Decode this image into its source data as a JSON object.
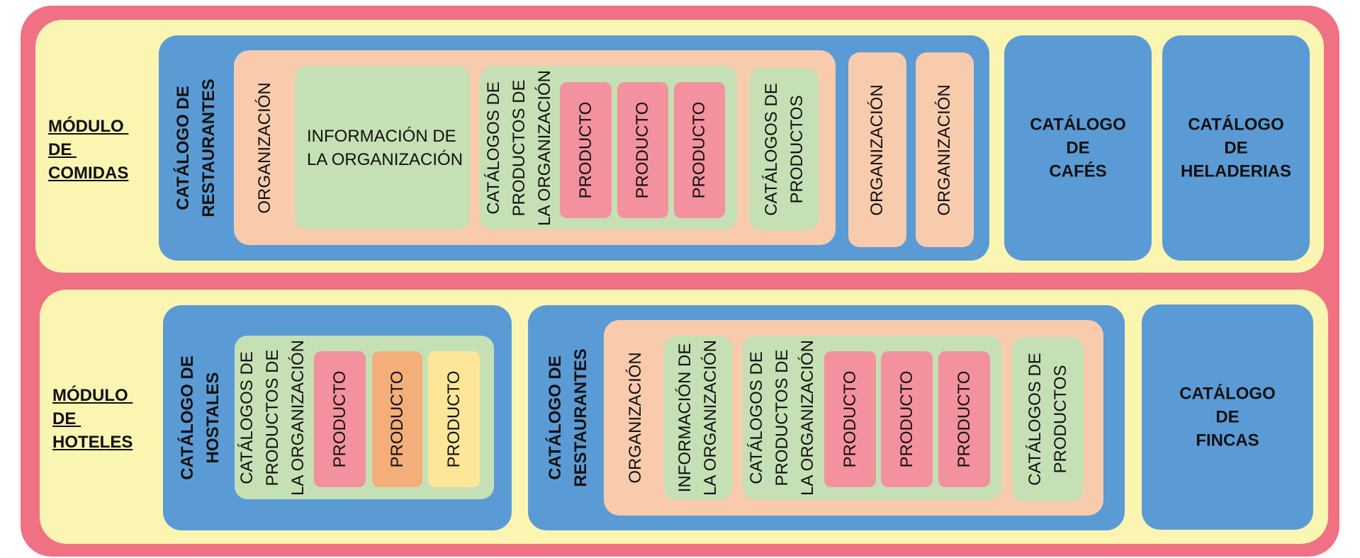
{
  "modules": {
    "comidas": {
      "label": "MÓDULO \nDE \nCOMIDAS",
      "restaurantes": {
        "label": "CATÁLOGO DE\nRESTAURANTES",
        "org_main": {
          "label": "ORGANIZACIÓN",
          "info": "INFORMACIÓN DE\nLA ORGANIZACIÓN",
          "catalogos_org": {
            "label": "CATÁLOGOS DE\nPRODUCTOS DE\nLA ORGANIZACIÓN",
            "productos": [
              "PRODUCTO",
              "PRODUCTO",
              "PRODUCTO"
            ]
          },
          "catalogos_productos": "CATÁLOGOS DE\nPRODUCTOS"
        },
        "org_extra": [
          "ORGANIZACIÓN",
          "ORGANIZACIÓN"
        ]
      },
      "cafes": "CATÁLOGO\nDE\nCAFÉS",
      "heladerias": "CATÁLOGO\nDE\nHELADERIAS"
    },
    "hoteles": {
      "label": "MÓDULO \nDE \nHOTELES",
      "hostales": {
        "label": "CATÁLOGO DE\nHOSTALES",
        "catalogos_org": {
          "label": "CATÁLOGOS DE\nPRODUCTOS DE\nLA ORGANIZACIÓN",
          "productos": [
            "PRODUCTO",
            "PRODUCTO",
            "PRODUCTO"
          ]
        }
      },
      "restaurantes": {
        "label": "CATÁLOGO DE\nRESTAURANTES",
        "org_main": {
          "label": "ORGANIZACIÓN",
          "info": "INFORMACIÓN DE\nLA ORGANIZACIÓN",
          "catalogos_org": {
            "label": "CATÁLOGOS DE\nPRODUCTOS DE\nLA ORGANIZACIÓN",
            "productos": [
              "PRODUCTO",
              "PRODUCTO",
              "PRODUCTO"
            ]
          },
          "catalogos_productos": "CATÁLOGOS DE\nPRODUCTOS"
        }
      },
      "fincas": "CATÁLOGO\nDE\nFINCAS"
    }
  },
  "colors": {
    "outer": "#f07183",
    "module": "#fbf5b2",
    "catalog": "#5b9bd5",
    "organization": "#f8cbad",
    "product_catalog": "#c5e0b4",
    "product_pink": "#f4919f",
    "product_orange": "#f4ae7a",
    "product_yellow": "#fee699"
  }
}
